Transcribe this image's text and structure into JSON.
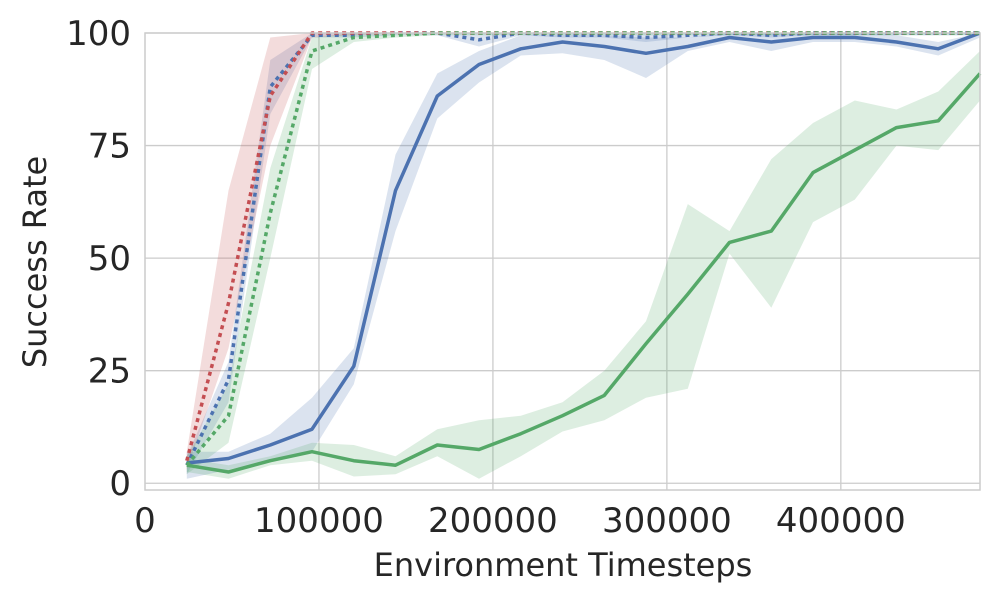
{
  "chart_data": {
    "type": "line",
    "xlabel": "Environment Timesteps",
    "ylabel": "Success Rate",
    "xlim": [
      0,
      480000
    ],
    "ylim": [
      -1.5,
      100
    ],
    "xticks": [
      0,
      100000,
      200000,
      300000,
      400000
    ],
    "yticks": [
      0,
      25,
      50,
      75,
      100
    ],
    "xtick_labels": [
      "0",
      "100000",
      "200000",
      "300000",
      "400000"
    ],
    "ytick_labels": [
      "0",
      "25",
      "50",
      "75",
      "100"
    ],
    "grid": true,
    "legend": "none",
    "series": [
      {
        "color": "#4c72b0",
        "style": "solid",
        "x": [
          24000,
          48000,
          72000,
          96000,
          120000,
          144000,
          168000,
          192000,
          216000,
          240000,
          264000,
          288000,
          312000,
          336000,
          360000,
          384000,
          408000,
          432000,
          456000,
          480000
        ],
        "y": [
          4.5,
          5.5,
          8.5,
          12,
          26,
          65,
          86,
          93,
          96.5,
          98,
          97,
          95.5,
          97,
          99,
          98,
          99,
          99,
          98,
          96.5,
          100
        ],
        "lower": [
          1,
          3,
          5,
          7,
          22,
          56,
          81,
          89,
          95,
          95.5,
          94,
          90,
          96,
          98,
          96,
          98,
          98,
          97,
          95,
          99
        ],
        "upper": [
          7,
          7,
          11,
          19,
          30,
          73,
          91,
          96,
          99.5,
          99.5,
          99.5,
          99,
          99,
          100,
          100,
          100,
          100,
          99.5,
          98,
          100
        ]
      },
      {
        "color": "#4c72b0",
        "style": "dashed",
        "x": [
          24000,
          48000,
          72000,
          96000,
          120000,
          144000,
          168000,
          192000,
          216000,
          240000,
          264000,
          288000,
          312000,
          336000,
          360000,
          384000,
          408000,
          432000,
          456000,
          480000
        ],
        "y": [
          4,
          23,
          88,
          99.5,
          99.5,
          100,
          100,
          98.5,
          100,
          99.5,
          99.5,
          99,
          99.5,
          100,
          99.5,
          100,
          100,
          100,
          100,
          100
        ],
        "lower": [
          2,
          18,
          82,
          99,
          99,
          99.5,
          99.5,
          97,
          99.5,
          99,
          99,
          98,
          99,
          99.5,
          99,
          99.5,
          99.5,
          99.5,
          99.5,
          99.5
        ],
        "upper": [
          6,
          27,
          94,
          100,
          100,
          100,
          100,
          100,
          100,
          100,
          100,
          100,
          100,
          100,
          100,
          100,
          100,
          100,
          100,
          100
        ]
      },
      {
        "color": "#c44e52",
        "style": "dashed",
        "x": [
          24000,
          48000,
          72000,
          96000,
          120000,
          144000,
          168000,
          192000,
          216000,
          240000,
          264000,
          288000,
          312000,
          336000,
          360000,
          384000,
          408000,
          432000,
          456000,
          480000
        ],
        "y": [
          5,
          40,
          86,
          100,
          100,
          100,
          100,
          100,
          100,
          100,
          100,
          100,
          100,
          100,
          100,
          100,
          100,
          100,
          100,
          100
        ],
        "lower": [
          3,
          30,
          75,
          99,
          99.5,
          100,
          100,
          100,
          100,
          100,
          100,
          100,
          100,
          100,
          100,
          100,
          100,
          100,
          100,
          100
        ],
        "upper": [
          7,
          65,
          99,
          100,
          100,
          100,
          100,
          100,
          100,
          100,
          100,
          100,
          100,
          100,
          100,
          100,
          100,
          100,
          100,
          100
        ]
      },
      {
        "color": "#55a868",
        "style": "dashed",
        "x": [
          24000,
          48000,
          72000,
          96000,
          120000,
          144000,
          168000,
          192000,
          216000,
          240000,
          264000,
          288000,
          312000,
          336000,
          360000,
          384000,
          408000,
          432000,
          456000,
          480000
        ],
        "y": [
          4,
          15,
          60,
          96,
          99,
          99.5,
          100,
          100,
          100,
          100,
          100,
          100,
          100,
          100,
          100,
          100,
          100,
          100,
          100,
          100
        ],
        "lower": [
          2,
          9,
          50,
          92,
          98,
          99,
          99.5,
          99.5,
          99.5,
          99.5,
          99.5,
          99.5,
          99.5,
          99.5,
          99.5,
          99.5,
          99.5,
          99.5,
          99.5,
          99.5
        ],
        "upper": [
          6,
          22,
          70,
          99,
          100,
          100,
          100,
          100,
          100,
          100,
          100,
          100,
          100,
          100,
          100,
          100,
          100,
          100,
          100,
          100
        ]
      },
      {
        "color": "#55a868",
        "style": "solid",
        "x": [
          24000,
          48000,
          72000,
          96000,
          120000,
          144000,
          168000,
          192000,
          216000,
          240000,
          264000,
          288000,
          312000,
          336000,
          360000,
          384000,
          408000,
          432000,
          456000,
          480000
        ],
        "y": [
          4,
          2.5,
          5,
          7,
          5,
          4,
          8.5,
          7.5,
          11,
          15,
          19.5,
          31,
          42,
          53.5,
          56,
          69,
          74,
          79,
          80.5,
          91
        ],
        "lower": [
          2.5,
          1,
          4,
          5,
          1.5,
          2,
          6,
          1,
          6,
          11.5,
          14,
          19,
          21,
          51,
          39,
          58,
          63,
          75,
          74,
          85
        ],
        "upper": [
          5.5,
          4,
          6,
          9,
          8.5,
          6,
          12,
          14,
          15,
          18,
          25,
          36,
          62,
          56,
          72,
          80,
          85,
          83,
          87,
          96
        ]
      }
    ]
  }
}
